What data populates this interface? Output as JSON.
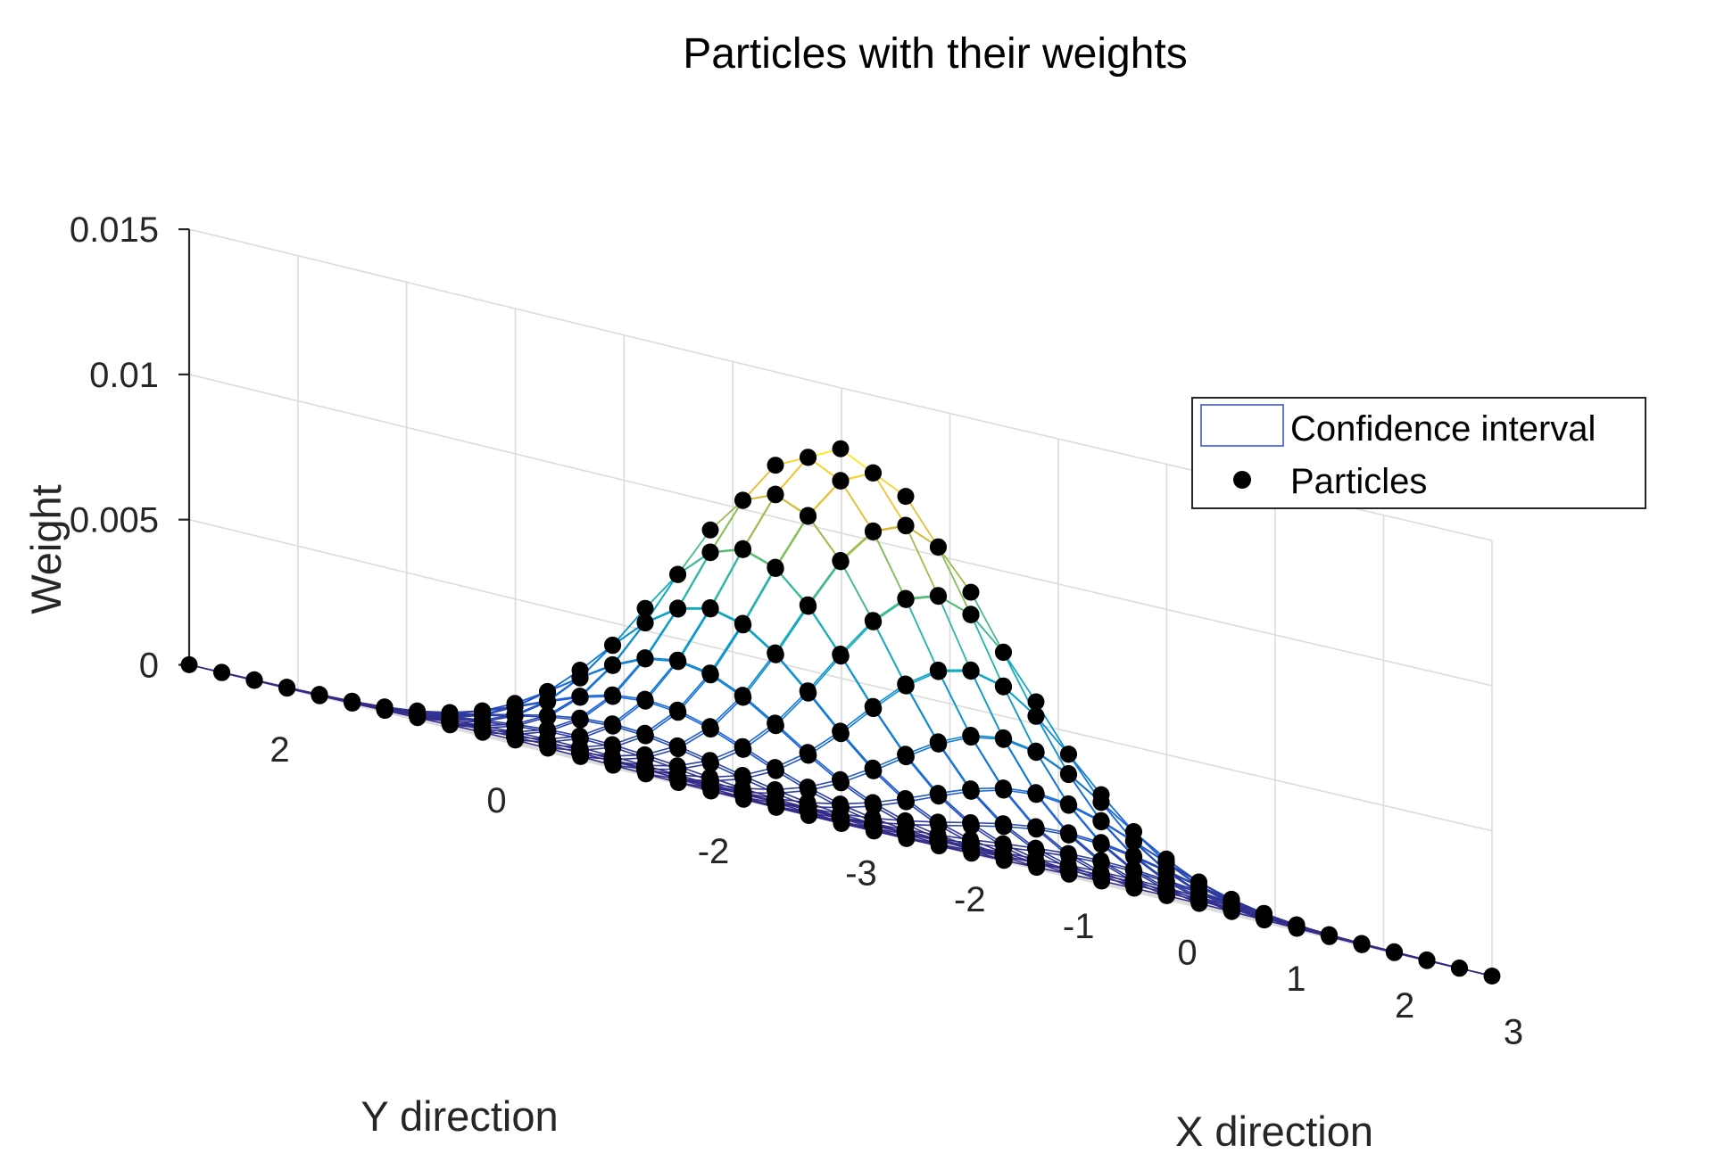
{
  "chart_data": {
    "type": "surface",
    "title": "Particles with their weights",
    "xlabel": "X direction",
    "ylabel": "Y direction",
    "zlabel": "Weight",
    "xlim": [
      -3,
      3
    ],
    "ylim": [
      -3,
      3
    ],
    "zlim": [
      0,
      0.015
    ],
    "x_ticks": [
      "-3",
      "-2",
      "-1",
      "0",
      "1",
      "2",
      "3"
    ],
    "y_ticks": [
      "-2",
      "0",
      "2"
    ],
    "z_ticks": [
      "0",
      "0.005",
      "0.01",
      "0.015"
    ],
    "grid": true,
    "grid_points_per_axis": 21,
    "surface": {
      "function": "gaussian",
      "mean": [
        0,
        0
      ],
      "sigma": 1.0,
      "peak_weight": 0.0128,
      "colormap": "parula"
    },
    "series": [
      {
        "name": "Confidence interval",
        "kind": "mesh",
        "color": "#3b55e6"
      },
      {
        "name": "Particles",
        "kind": "markers",
        "color": "#000000"
      }
    ],
    "legend_position": "top-right"
  },
  "colors": {
    "axis": "#262626",
    "grid": "#dcdcdc",
    "marker": "#000000",
    "legend_patch_edge": "#3b55e6"
  }
}
